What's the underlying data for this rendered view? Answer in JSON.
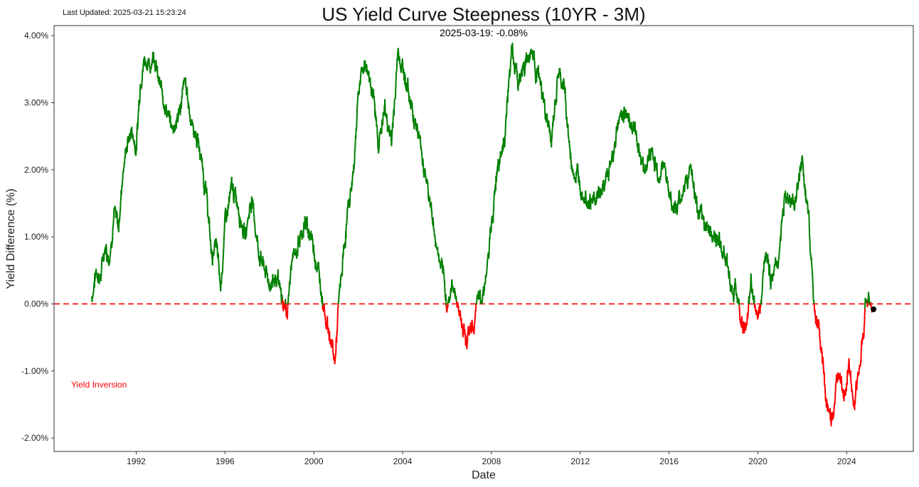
{
  "header": {
    "last_updated": "Last Updated: 2025-03-21 15:23:24",
    "title": "US Yield Curve Steepness (10YR - 3M)"
  },
  "colors": {
    "positive": "#008000",
    "inverted": "#ff0000",
    "zero_line": "#ff0000",
    "marker": "#000000",
    "annotation": "#ff0000"
  },
  "chart_data": {
    "type": "line",
    "title": "US Yield Curve Steepness (10YR - 3M)",
    "xlabel": "Date",
    "ylabel": "Yield Difference (%)",
    "xlim": [
      1988.3,
      2027.0
    ],
    "ylim": [
      -2.2,
      4.15
    ],
    "x_ticks": [
      1992,
      1996,
      2000,
      2004,
      2008,
      2012,
      2016,
      2020,
      2024
    ],
    "x_tick_labels": [
      "1992",
      "1996",
      "2000",
      "2004",
      "2008",
      "2012",
      "2016",
      "2020",
      "2024"
    ],
    "y_ticks": [
      -2,
      -1,
      0,
      1,
      2,
      3,
      4
    ],
    "y_tick_labels": [
      "-2.00%",
      "-1.00%",
      "0.00%",
      "1.00%",
      "2.00%",
      "3.00%",
      "4.00%"
    ],
    "grid": false,
    "zero_line": 0,
    "coloring": "green where value >= 0, red where value < 0",
    "series": [
      {
        "x": [
          1990.0,
          1990.2,
          1990.4,
          1990.6,
          1990.8,
          1991.0,
          1991.2,
          1991.4,
          1991.6,
          1991.8,
          1992.0,
          1992.2,
          1992.4,
          1992.6,
          1992.8,
          1993.0,
          1993.3,
          1993.6,
          1993.9,
          1994.2,
          1994.5,
          1994.8,
          1995.0,
          1995.2,
          1995.4,
          1995.6,
          1995.8,
          1996.0,
          1996.3,
          1996.6,
          1996.9,
          1997.2,
          1997.5,
          1997.8,
          1998.0,
          1998.3,
          1998.6,
          1998.8,
          1999.0,
          1999.3,
          1999.6,
          1999.9,
          2000.2,
          2000.4,
          2000.6,
          2000.8,
          2000.95,
          2001.1,
          2001.3,
          2001.5,
          2001.8,
          2002.0,
          2002.3,
          2002.6,
          2002.9,
          2003.2,
          2003.5,
          2003.8,
          2004.1,
          2004.3,
          2004.6,
          2004.9,
          2005.2,
          2005.5,
          2005.8,
          2006.0,
          2006.3,
          2006.6,
          2006.9,
          2007.2,
          2007.4,
          2007.6,
          2007.8,
          2008.0,
          2008.3,
          2008.6,
          2008.9,
          2009.2,
          2009.5,
          2009.8,
          2010.1,
          2010.4,
          2010.7,
          2011.0,
          2011.3,
          2011.6,
          2011.9,
          2012.2,
          2012.5,
          2012.8,
          2013.1,
          2013.4,
          2013.7,
          2014.0,
          2014.3,
          2014.6,
          2014.9,
          2015.2,
          2015.5,
          2015.8,
          2016.1,
          2016.4,
          2016.7,
          2017.0,
          2017.3,
          2017.6,
          2017.9,
          2018.2,
          2018.5,
          2018.8,
          2019.1,
          2019.3,
          2019.5,
          2019.7,
          2019.9,
          2020.1,
          2020.3,
          2020.6,
          2020.9,
          2021.2,
          2021.5,
          2021.8,
          2022.0,
          2022.3,
          2022.5,
          2022.7,
          2022.9,
          2023.1,
          2023.3,
          2023.5,
          2023.7,
          2023.9,
          2024.1,
          2024.3,
          2024.5,
          2024.7,
          2024.9,
          2025.1,
          2025.21
        ],
        "values": [
          0.1,
          0.5,
          0.4,
          0.9,
          0.7,
          1.4,
          1.1,
          2.0,
          2.4,
          2.6,
          2.3,
          3.4,
          3.7,
          3.5,
          3.8,
          3.3,
          3.0,
          2.6,
          2.8,
          3.3,
          2.7,
          2.4,
          2.0,
          1.5,
          0.7,
          0.9,
          0.2,
          1.2,
          1.7,
          1.5,
          1.0,
          1.6,
          0.8,
          0.5,
          0.3,
          0.4,
          0.0,
          -0.1,
          0.6,
          0.9,
          1.2,
          1.0,
          0.5,
          0.1,
          -0.3,
          -0.6,
          -0.9,
          -0.1,
          0.6,
          1.3,
          2.0,
          3.2,
          3.6,
          3.3,
          2.4,
          2.9,
          2.4,
          3.8,
          3.4,
          3.1,
          2.7,
          2.2,
          1.6,
          0.9,
          0.4,
          0.0,
          0.3,
          -0.2,
          -0.5,
          -0.3,
          0.0,
          0.2,
          0.5,
          1.1,
          2.2,
          2.5,
          3.8,
          3.3,
          3.6,
          3.8,
          3.4,
          2.9,
          2.4,
          3.4,
          3.2,
          2.0,
          1.9,
          1.7,
          1.5,
          1.6,
          1.8,
          2.1,
          2.7,
          2.9,
          2.7,
          2.4,
          2.0,
          2.3,
          1.9,
          2.1,
          1.5,
          1.4,
          1.8,
          2.0,
          1.3,
          1.2,
          1.1,
          0.9,
          0.8,
          0.3,
          0.1,
          -0.3,
          -0.4,
          0.3,
          -0.1,
          0.0,
          0.8,
          0.4,
          0.6,
          1.6,
          1.5,
          1.7,
          2.1,
          1.2,
          0.1,
          -0.3,
          -0.8,
          -1.5,
          -1.8,
          -1.4,
          -0.9,
          -1.3,
          -0.9,
          -1.6,
          -1.2,
          -0.6,
          0.2,
          -0.1,
          -0.08
        ]
      }
    ],
    "latest_point": {
      "x": 2025.21,
      "y": -0.08
    },
    "annotations": [
      {
        "text": "2025-03-19: -0.08%",
        "position": "top-center"
      },
      {
        "text": "Yield Inversion",
        "position": "left, below zero line"
      }
    ]
  }
}
